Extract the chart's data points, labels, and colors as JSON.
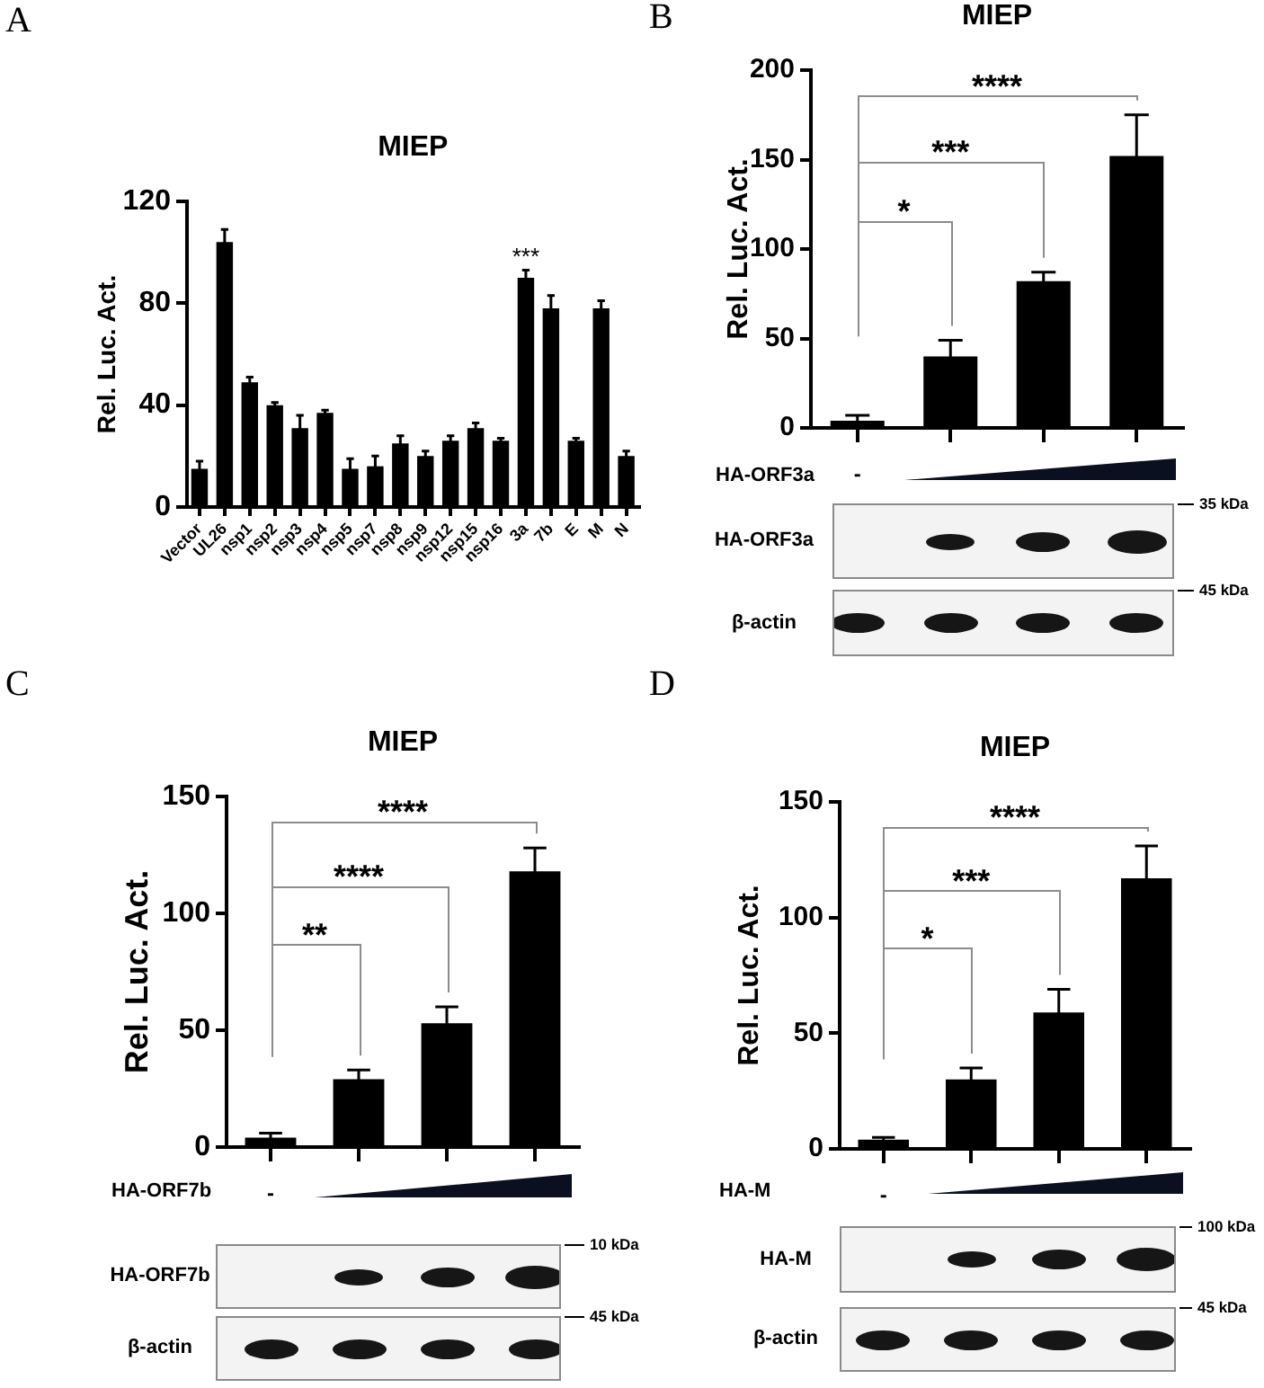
{
  "chart_data": [
    {
      "type": "bar",
      "title": "MIEP",
      "ylabel": "Rel. Luc. Act.",
      "categories": [
        "Vector",
        "UL26",
        "nsp1",
        "nsp2",
        "nsp3",
        "nsp4",
        "nsp5",
        "nsp7",
        "nsp8",
        "nsp9",
        "nsp12",
        "nsp15",
        "nsp16",
        "3a",
        "7b",
        "E",
        "M",
        "N"
      ],
      "values": [
        15,
        104,
        49,
        40,
        31,
        37,
        15,
        16,
        25,
        20,
        26,
        31,
        26,
        90,
        78,
        26,
        78,
        20
      ],
      "errors": [
        3,
        5,
        2,
        1,
        5,
        1,
        4,
        4,
        3,
        2,
        2,
        2,
        1,
        3,
        5,
        1,
        3,
        2
      ],
      "color": "#000000",
      "ylim": [
        0,
        120
      ],
      "yticks": [
        0,
        40,
        80,
        120
      ],
      "annotations": [
        "A",
        {
          "text": "***",
          "x": "3a",
          "y": 90
        }
      ]
    },
    {
      "type": "bar",
      "title": "MIEP",
      "ylabel": "Rel. Luc. Act.",
      "xlabel": "HA-ORF3a",
      "categories": [
        "-",
        null,
        null,
        null
      ],
      "values": [
        4,
        40,
        82,
        152
      ],
      "errors": [
        3,
        9,
        5,
        23
      ],
      "color": "#000000",
      "ylim": [
        0,
        200
      ],
      "yticks": [
        0,
        50,
        100,
        150,
        200
      ],
      "annotations": [
        "B",
        "*",
        "***",
        "****",
        "HA-ORF3a",
        "35 kDa",
        "β-actin",
        "45 kDa"
      ]
    },
    {
      "type": "bar",
      "title": "MIEP",
      "ylabel": "Rel. Luc. Act.",
      "xlabel": "HA-ORF7b",
      "categories": [
        "-",
        null,
        null,
        null
      ],
      "values": [
        4,
        29,
        53,
        118
      ],
      "errors": [
        2,
        4,
        7,
        10
      ],
      "color": "#000000",
      "ylim": [
        0,
        150
      ],
      "yticks": [
        0,
        50,
        100,
        150
      ],
      "annotations": [
        "C",
        "**",
        "****",
        "****",
        "HA-ORF7b",
        "10 kDa",
        "β-actin",
        "45 kDa"
      ]
    },
    {
      "type": "bar",
      "title": "MIEP",
      "ylabel": "Rel. Luc. Act.",
      "xlabel": "HA-M",
      "categories": [
        "-",
        null,
        null,
        null
      ],
      "values": [
        4,
        30,
        59,
        117
      ],
      "errors": [
        1,
        5,
        10,
        14
      ],
      "color": "#000000",
      "ylim": [
        0,
        150
      ],
      "yticks": [
        0,
        50,
        100,
        150
      ],
      "annotations": [
        "D",
        "*",
        "***",
        "****",
        "HA-M",
        "100 kDa",
        "β-actin",
        "45 kDa"
      ]
    }
  ]
}
